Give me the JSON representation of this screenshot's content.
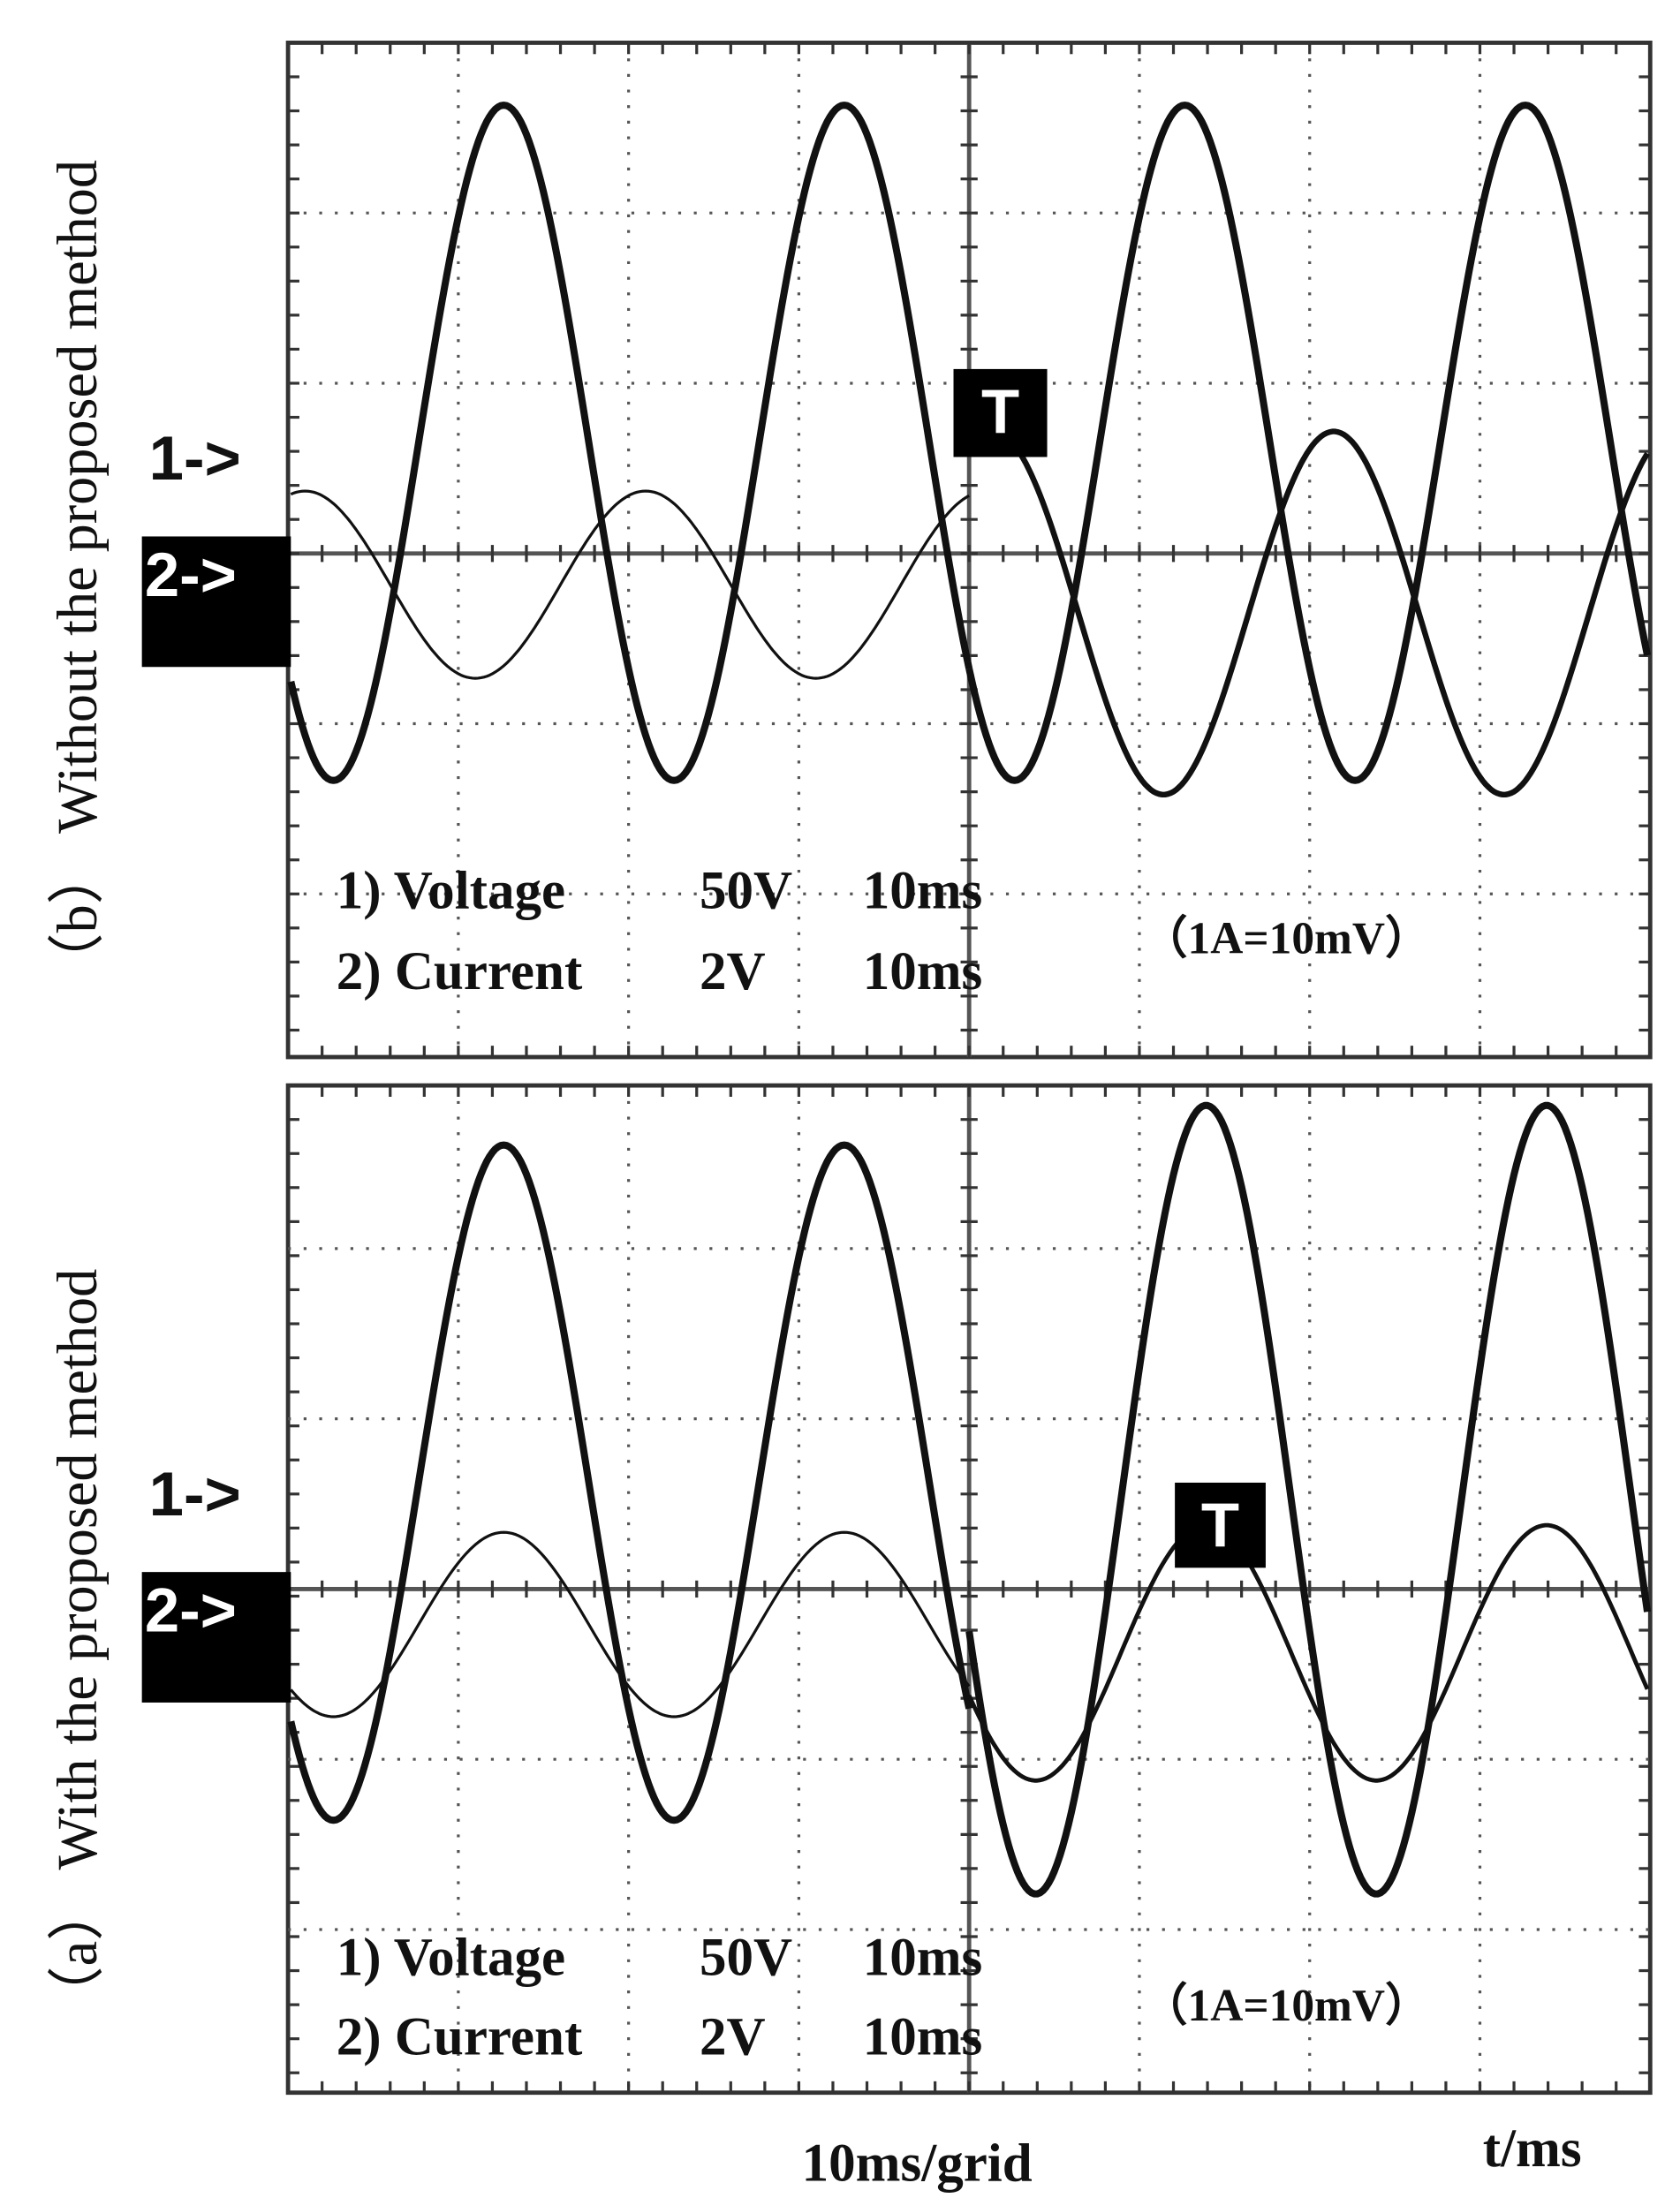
{
  "panel_b": {
    "side_label": "（b） Without the proposed method",
    "ch1_marker": "1->",
    "ch2_marker": "2->",
    "trigger": "T",
    "legend": [
      [
        "1) Voltage",
        "50V",
        "10ms"
      ],
      [
        "2) Current",
        "2V",
        "10ms"
      ]
    ],
    "note": "（1A=10mV）"
  },
  "panel_a": {
    "side_label": "（a） With the proposed method",
    "ch1_marker": "1->",
    "ch2_marker": "2->",
    "trigger": "T",
    "legend": [
      [
        "1) Voltage",
        "50V",
        "10ms"
      ],
      [
        "2) Current",
        "2V",
        "10ms"
      ]
    ],
    "note": "（1A=10mV）"
  },
  "footer": {
    "time_scale": "10ms/grid",
    "axis_label": "t/ms"
  }
}
